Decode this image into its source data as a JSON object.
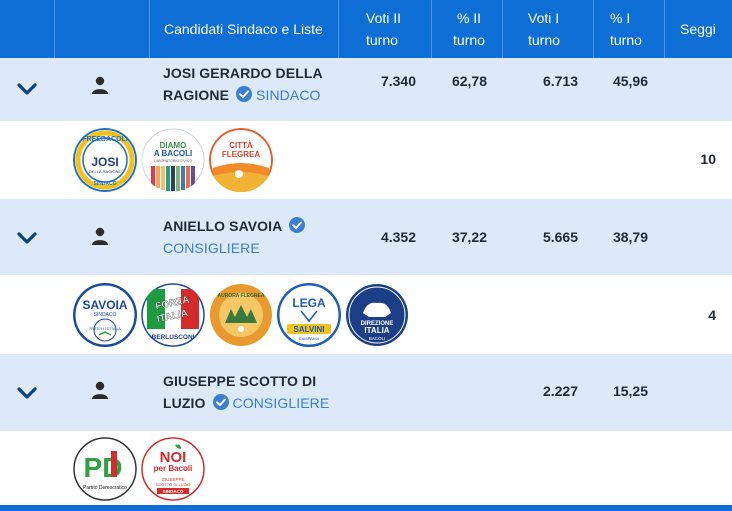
{
  "header": {
    "candidates_lists": "Candidati Sindaco e Liste",
    "votes_round2": "Voti II turno",
    "pct_round2": "% II turno",
    "votes_round1": "Voti I turno",
    "pct_round1": "% I turno",
    "seats": "Seggi"
  },
  "candidates": [
    {
      "name": "JOSI GERARDO DELLA RAGIONE",
      "role": "SINDACO",
      "votes_round2": "7.340",
      "pct_round2": "62,78",
      "votes_round1": "6.713",
      "pct_round1": "45,96",
      "seats": "10",
      "lists": [
        {
          "icon": "freebacoli-josi-logo",
          "lines": [
            "FREEBACOLI",
            "JOSI",
            "DELLA RAGIONE",
            "SINDACO"
          ],
          "color": "#1e6fc1"
        },
        {
          "icon": "diamo-a-bacoli-logo",
          "lines": [
            "DIAMO",
            "A BACOLI",
            "LABORATORIO CIVICO"
          ],
          "color": "#3a8f4a"
        },
        {
          "icon": "citta-flegrea-logo",
          "lines": [
            "CITTÀ",
            "FLEGREA"
          ],
          "color": "#e85d2a"
        }
      ]
    },
    {
      "name": "ANIELLO SAVOIA",
      "role": "CONSIGLIERE",
      "votes_round2": "4.352",
      "pct_round2": "37,22",
      "votes_round1": "5.665",
      "pct_round1": "38,79",
      "seats": "4",
      "lists": [
        {
          "icon": "savoia-sindaco-logo",
          "lines": [
            "SAVOIA",
            "SINDACO",
            "FRATELLI D'ITALIA"
          ],
          "color": "#1a4a9e"
        },
        {
          "icon": "forza-italia-logo",
          "lines": [
            "FORZA",
            "ITALIA",
            "BERLUSCONI"
          ],
          "color": "#1c9c3e"
        },
        {
          "icon": "aurora-flegrea-logo",
          "lines": [
            "AURORA FLEGREA"
          ],
          "color": "#e89a2c"
        },
        {
          "icon": "lega-salvini-logo",
          "lines": [
            "LEGA",
            "SALVINI",
            "CAMPANIA"
          ],
          "color": "#1d5cb8"
        },
        {
          "icon": "direzione-italia-logo",
          "lines": [
            "DIREZIONE",
            "ITALIA",
            "BACOLI"
          ],
          "color": "#1b3f86"
        }
      ]
    },
    {
      "name": "GIUSEPPE SCOTTO DI LUZIO",
      "role": "CONSIGLIERE",
      "votes_round2": "",
      "pct_round2": "",
      "votes_round1": "2.227",
      "pct_round1": "15,25",
      "seats": "",
      "lists": [
        {
          "icon": "partito-democratico-logo",
          "lines": [
            "PD",
            "Partito Democratico"
          ],
          "color": "#2fa043"
        },
        {
          "icon": "noi-per-bacoli-logo",
          "lines": [
            "NOI",
            "per Bacoli",
            "GIUSEPPE",
            "SCOTTO DI LUZIO",
            "SINDACO"
          ],
          "color": "#d52b2b"
        }
      ]
    }
  ]
}
